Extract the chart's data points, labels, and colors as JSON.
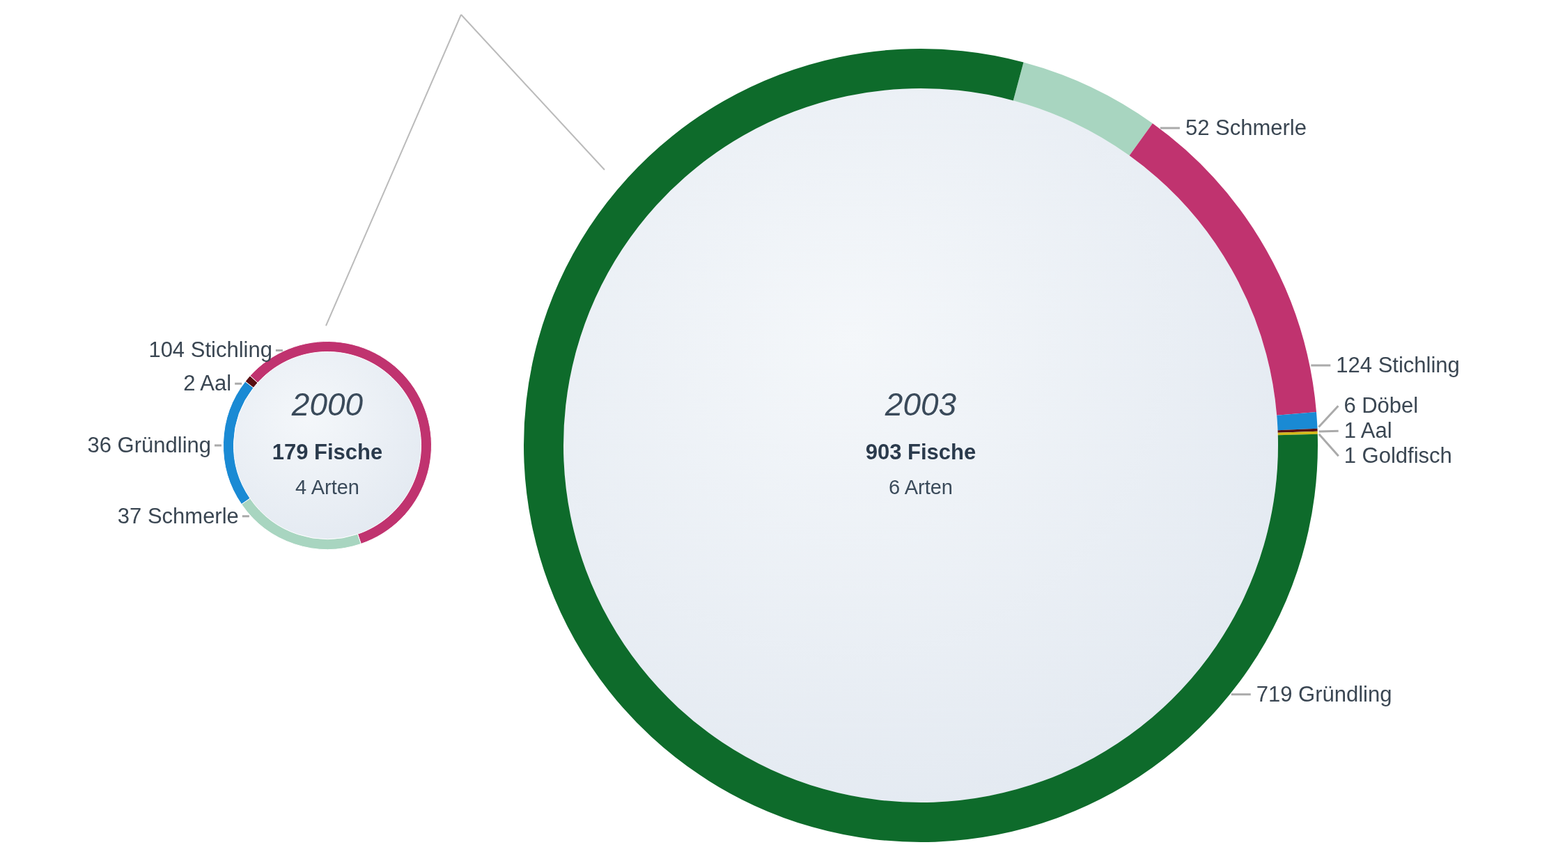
{
  "chart_data": [
    {
      "type": "donut",
      "title": "2000",
      "annotations": [
        "179 Fische",
        "4 Arten"
      ],
      "categories": [
        "104 Stichling",
        "37 Schmerle",
        "36 Gründling",
        "2 Aal"
      ],
      "values": [
        104,
        37,
        36,
        2
      ],
      "colors": [
        "#c0336f",
        "#a8d5c0",
        "#1a8ad4",
        "#5a0f14"
      ]
    },
    {
      "type": "donut",
      "title": "2003",
      "annotations": [
        "903 Fische",
        "6 Arten"
      ],
      "categories": [
        "52 Schmerle",
        "124 Stichling",
        "6 Döbel",
        "1 Aal",
        "1 Goldfisch",
        "719 Gründling"
      ],
      "values": [
        52,
        124,
        6,
        1,
        1,
        719
      ],
      "colors": [
        "#a8d5c0",
        "#c0336f",
        "#1a8ad4",
        "#5a0f14",
        "#d4b81a",
        "#0e6b2b"
      ]
    }
  ]
}
